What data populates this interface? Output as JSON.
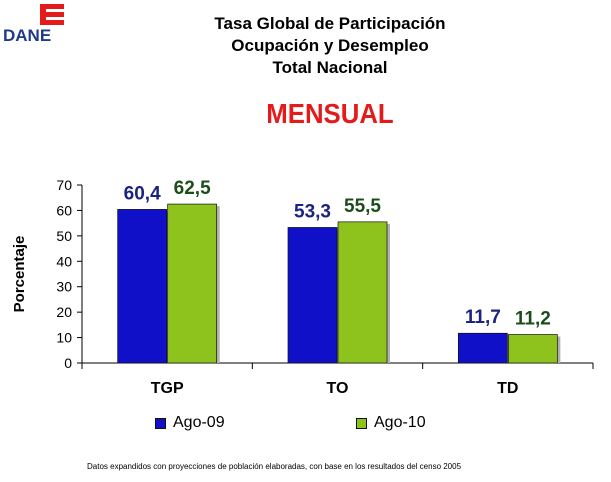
{
  "logo": {
    "text": "DANE",
    "colors": {
      "red": "#e41b1b",
      "blue": "#1f3a8a"
    }
  },
  "title_lines": [
    "Tasa Global de Participación",
    "Ocupación y Desempleo",
    "Total Nacional"
  ],
  "subtitle": "MENSUAL",
  "footnote": "Datos expandidos con proyecciones de población  elaboradas, con base en los resultados del censo 2005",
  "chart_data": {
    "type": "bar",
    "categories": [
      "TGP",
      "TO",
      "TD"
    ],
    "series": [
      {
        "name": "Ago-09",
        "values": [
          60.4,
          53.3,
          11.7
        ],
        "labels": [
          "60,4",
          "53,3",
          "11,7"
        ],
        "color": "#1010c8",
        "label_color": "#1a237e"
      },
      {
        "name": "Ago-10",
        "values": [
          62.5,
          55.5,
          11.2
        ],
        "labels": [
          "62,5",
          "55,5",
          "11,2"
        ],
        "color": "#8ec21c",
        "label_color": "#1b4d1b"
      }
    ],
    "ylabel": "Porcentaje",
    "ylim": [
      0,
      70
    ],
    "yticks": [
      0,
      10,
      20,
      30,
      40,
      50,
      60,
      70
    ],
    "grid": false,
    "legend_position": "bottom"
  }
}
